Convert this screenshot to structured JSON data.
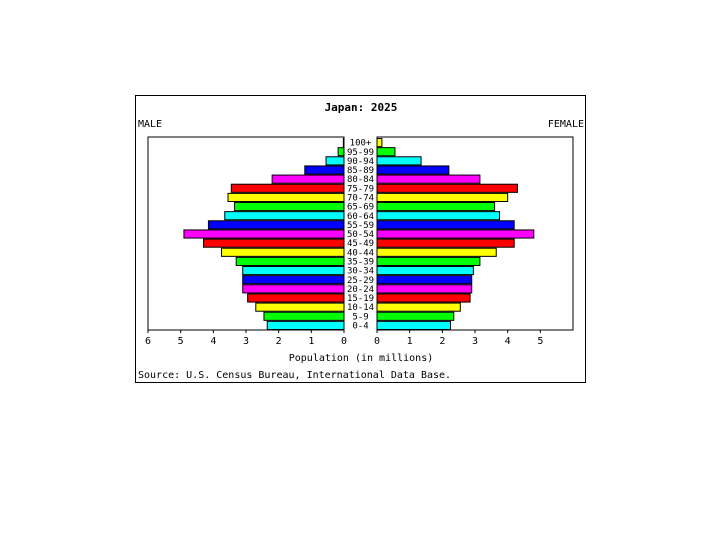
{
  "chart_data": {
    "type": "bar",
    "title": "Japan: 2025",
    "left_label": "MALE",
    "right_label": "FEMALE",
    "xlabel": "Population (in millions)",
    "source": "Source: U.S. Census Bureau, International Data Base.",
    "categories": [
      "100+",
      "95-99",
      "90-94",
      "85-89",
      "80-84",
      "75-79",
      "70-74",
      "65-69",
      "60-64",
      "55-59",
      "50-54",
      "45-49",
      "40-44",
      "35-39",
      "30-34",
      "25-29",
      "20-24",
      "15-19",
      "10-14",
      "5-9",
      "0-4"
    ],
    "xlim": [
      0,
      6
    ],
    "male_ticks": [
      "6",
      "5",
      "4",
      "3",
      "2",
      "1",
      "0"
    ],
    "female_ticks": [
      "0",
      "1",
      "2",
      "3",
      "4",
      "5"
    ],
    "colors": [
      "#ffff00",
      "#00ff00",
      "#00ffff",
      "#0000ff",
      "#ff00ff",
      "#ff0000",
      "#ffff00",
      "#00ff00",
      "#00ffff",
      "#0000ff",
      "#ff00ff",
      "#ff0000",
      "#ffff00",
      "#00ff00",
      "#00ffff",
      "#0000ff",
      "#ff00ff",
      "#ff0000",
      "#ffff00",
      "#00ff00",
      "#00ffff"
    ],
    "series": [
      {
        "name": "MALE",
        "values": [
          0.02,
          0.18,
          0.55,
          1.2,
          2.2,
          3.45,
          3.55,
          3.35,
          3.65,
          4.15,
          4.9,
          4.3,
          3.75,
          3.3,
          3.1,
          3.1,
          3.1,
          2.95,
          2.7,
          2.45,
          2.35
        ]
      },
      {
        "name": "FEMALE",
        "values": [
          0.15,
          0.55,
          1.35,
          2.2,
          3.15,
          4.3,
          4.0,
          3.6,
          3.75,
          4.2,
          4.8,
          4.2,
          3.65,
          3.15,
          2.95,
          2.9,
          2.9,
          2.85,
          2.55,
          2.35,
          2.25
        ]
      }
    ]
  }
}
